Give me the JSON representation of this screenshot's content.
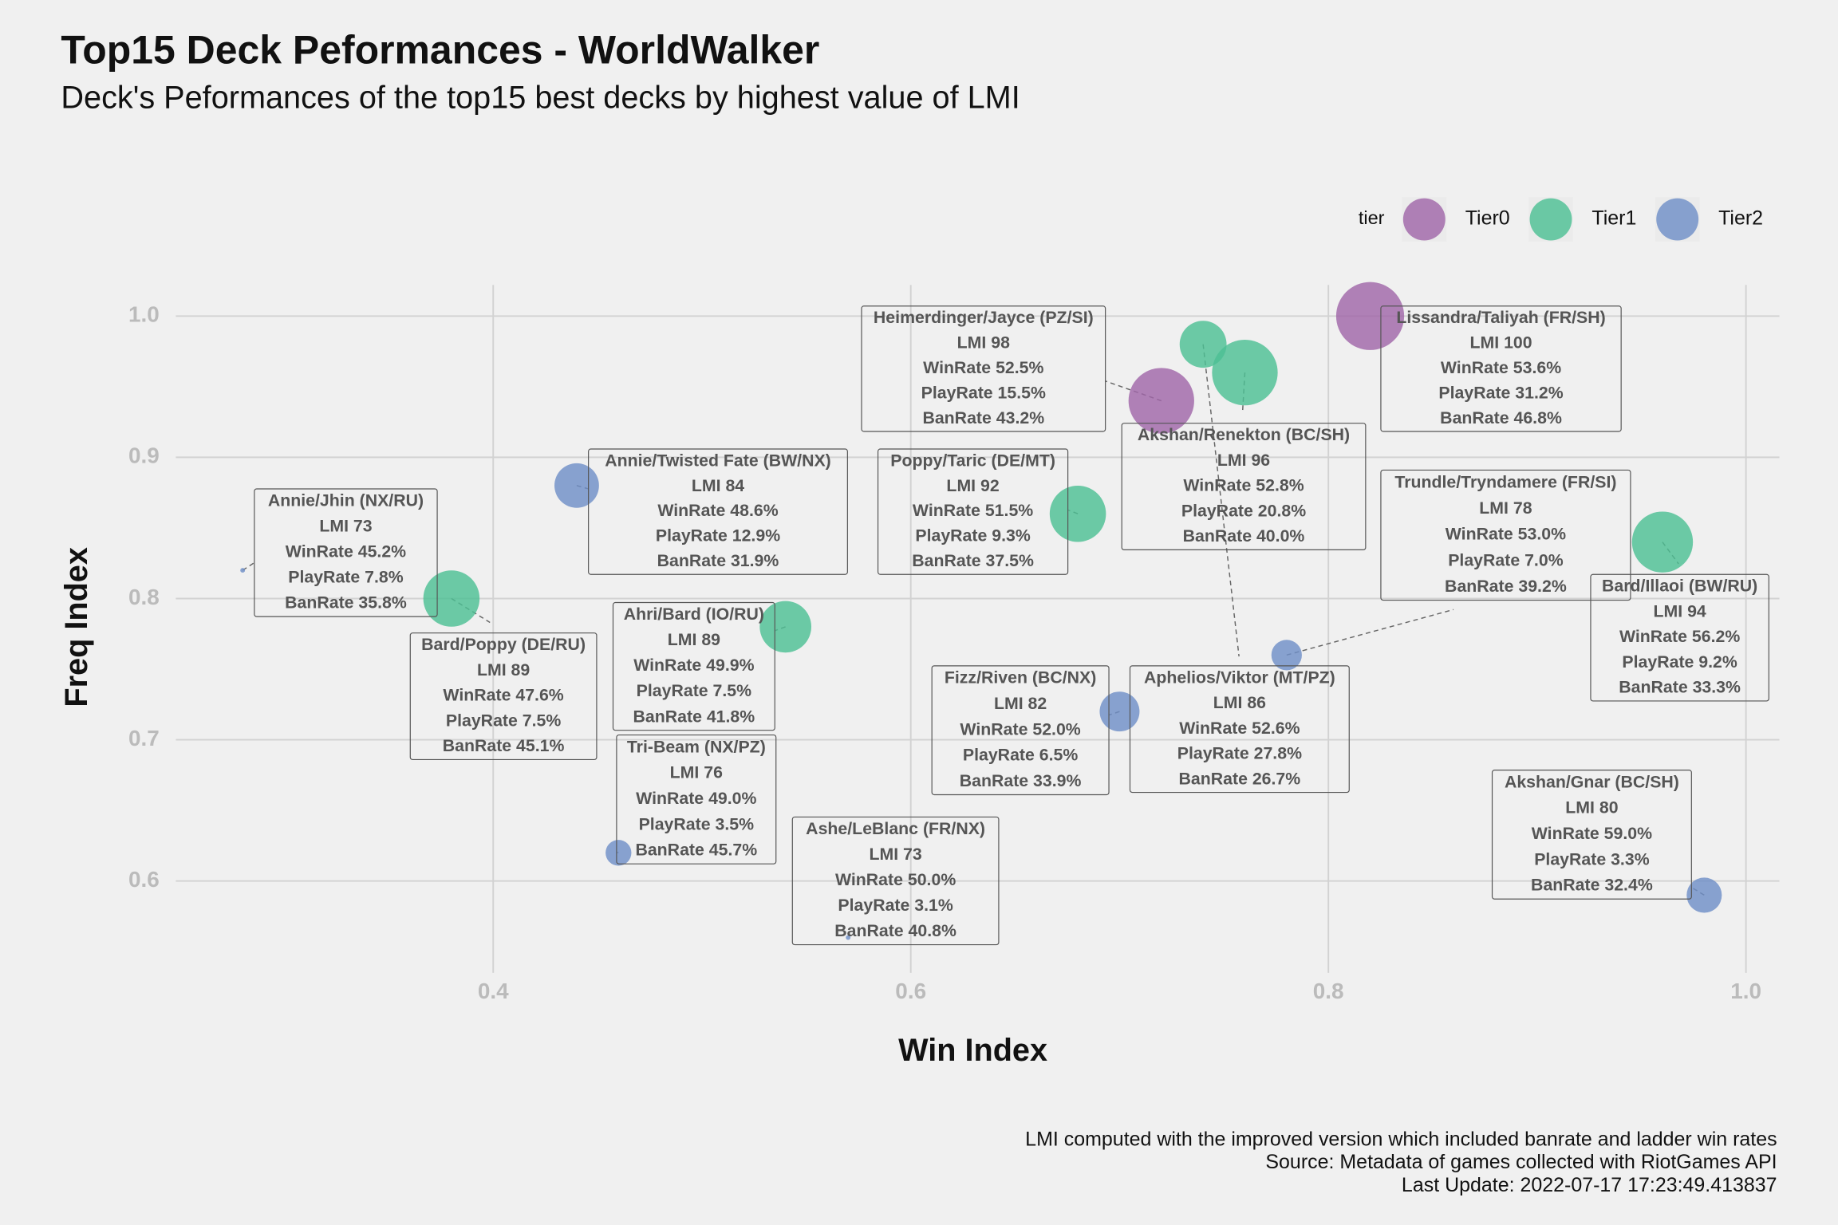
{
  "chart_data": {
    "type": "scatter",
    "title": "Top15 Deck Peformances - WorldWalker",
    "subtitle": "Deck's Peformances of the top15 best decks by highest value of LMI",
    "x_label": "Win Index",
    "y_label": "Freq Index",
    "caption": [
      "LMI computed with the improved version which included banrate and ladder win rates",
      "Source: Metadata of games collected with RiotGames API",
      "Last Update: 2022-07-17 17:23:49.413837"
    ],
    "legend_title": "tier",
    "legend_position": "top-right",
    "grid": true,
    "xlim": [
      0.248,
      1.016
    ],
    "ylim": [
      0.535,
      1.022
    ],
    "xticks": [
      0.4,
      0.6,
      0.8,
      {
        "value": 1,
        "label": "1.0"
      }
    ],
    "yticks": [
      0.6,
      0.7,
      0.8,
      0.9,
      {
        "value": 1,
        "label": "1.0"
      }
    ],
    "series": [
      {
        "name": "Tier0",
        "color": "#a066a8",
        "x": [
          0.82,
          0.72
        ],
        "y": [
          1.0,
          0.94
        ],
        "sizes": [
          29,
          28
        ],
        "labels": [
          [
            "Lissandra/Taliyah (FR/SH)",
            "LMI 100",
            "WinRate 53.6%",
            "PlayRate 31.2%",
            "BanRate 46.8%"
          ],
          [
            "Heimerdinger/Jayce (PZ/SI)",
            "LMI 98",
            "WinRate 52.5%",
            "PlayRate 15.5%",
            "BanRate 43.2%"
          ]
        ]
      },
      {
        "name": "Tier1",
        "color": "#4dbf94",
        "x": [
          0.76,
          0.74,
          0.96,
          0.68,
          0.54,
          0.38
        ],
        "y": [
          0.96,
          0.98,
          0.84,
          0.86,
          0.78,
          0.8
        ],
        "sizes": [
          28,
          20,
          26,
          24,
          22,
          24
        ],
        "labels": [
          [
            "Akshan/Renekton (BC/SH)",
            "LMI 96",
            "WinRate 52.8%",
            "PlayRate 20.8%",
            "BanRate 40.0%"
          ],
          [
            "Aphelios/Viktor (MT/PZ)",
            "LMI 86",
            "WinRate 52.6%",
            "PlayRate 27.8%",
            "BanRate 26.7%"
          ],
          [
            "Bard/Illaoi (BW/RU)",
            "LMI 94",
            "WinRate 56.2%",
            "PlayRate 9.2%",
            "BanRate 33.3%"
          ],
          [
            "Poppy/Taric (DE/MT)",
            "LMI 92",
            "WinRate 51.5%",
            "PlayRate 9.3%",
            "BanRate 37.5%"
          ],
          [
            "Ahri/Bard (IO/RU)",
            "LMI 89",
            "WinRate 49.9%",
            "PlayRate 7.5%",
            "BanRate 41.8%"
          ],
          [
            "Bard/Poppy (DE/RU)",
            "LMI 89",
            "WinRate 47.6%",
            "PlayRate 7.5%",
            "BanRate 45.1%"
          ]
        ]
      },
      {
        "name": "Tier2",
        "color": "#6f8fc7",
        "x": [
          0.78,
          0.98,
          0.7,
          0.44,
          0.28,
          0.46,
          0.57
        ],
        "y": [
          0.76,
          0.59,
          0.72,
          0.88,
          0.82,
          0.62,
          0.56
        ],
        "sizes": [
          13,
          15,
          17,
          19,
          2,
          11,
          2
        ],
        "labels": [
          [
            "Trundle/Tryndamere (FR/SI)",
            "LMI 78",
            "WinRate 53.0%",
            "PlayRate 7.0%",
            "BanRate 39.2%"
          ],
          [
            "Akshan/Gnar (BC/SH)",
            "LMI 80",
            "WinRate 59.0%",
            "PlayRate 3.3%",
            "BanRate 32.4%"
          ],
          [
            "Fizz/Riven (BC/NX)",
            "LMI 82",
            "WinRate 52.0%",
            "PlayRate 6.5%",
            "BanRate 33.9%"
          ],
          [
            "Annie/Twisted Fate (BW/NX)",
            "LMI 84",
            "WinRate 48.6%",
            "PlayRate 12.9%",
            "BanRate 31.9%"
          ],
          [
            "Annie/Jhin (NX/RU)",
            "LMI 73",
            "WinRate 45.2%",
            "PlayRate 7.8%",
            "BanRate 35.8%"
          ],
          [
            "Tri-Beam (NX/PZ)",
            "LMI 76",
            "WinRate 49.0%",
            "PlayRate 3.5%",
            "BanRate 45.7%"
          ],
          [
            "Ashe/LeBlanc (FR/NX)",
            "LMI 73",
            "WinRate 50.0%",
            "PlayRate 3.1%",
            "BanRate 40.8%"
          ]
        ]
      }
    ]
  }
}
